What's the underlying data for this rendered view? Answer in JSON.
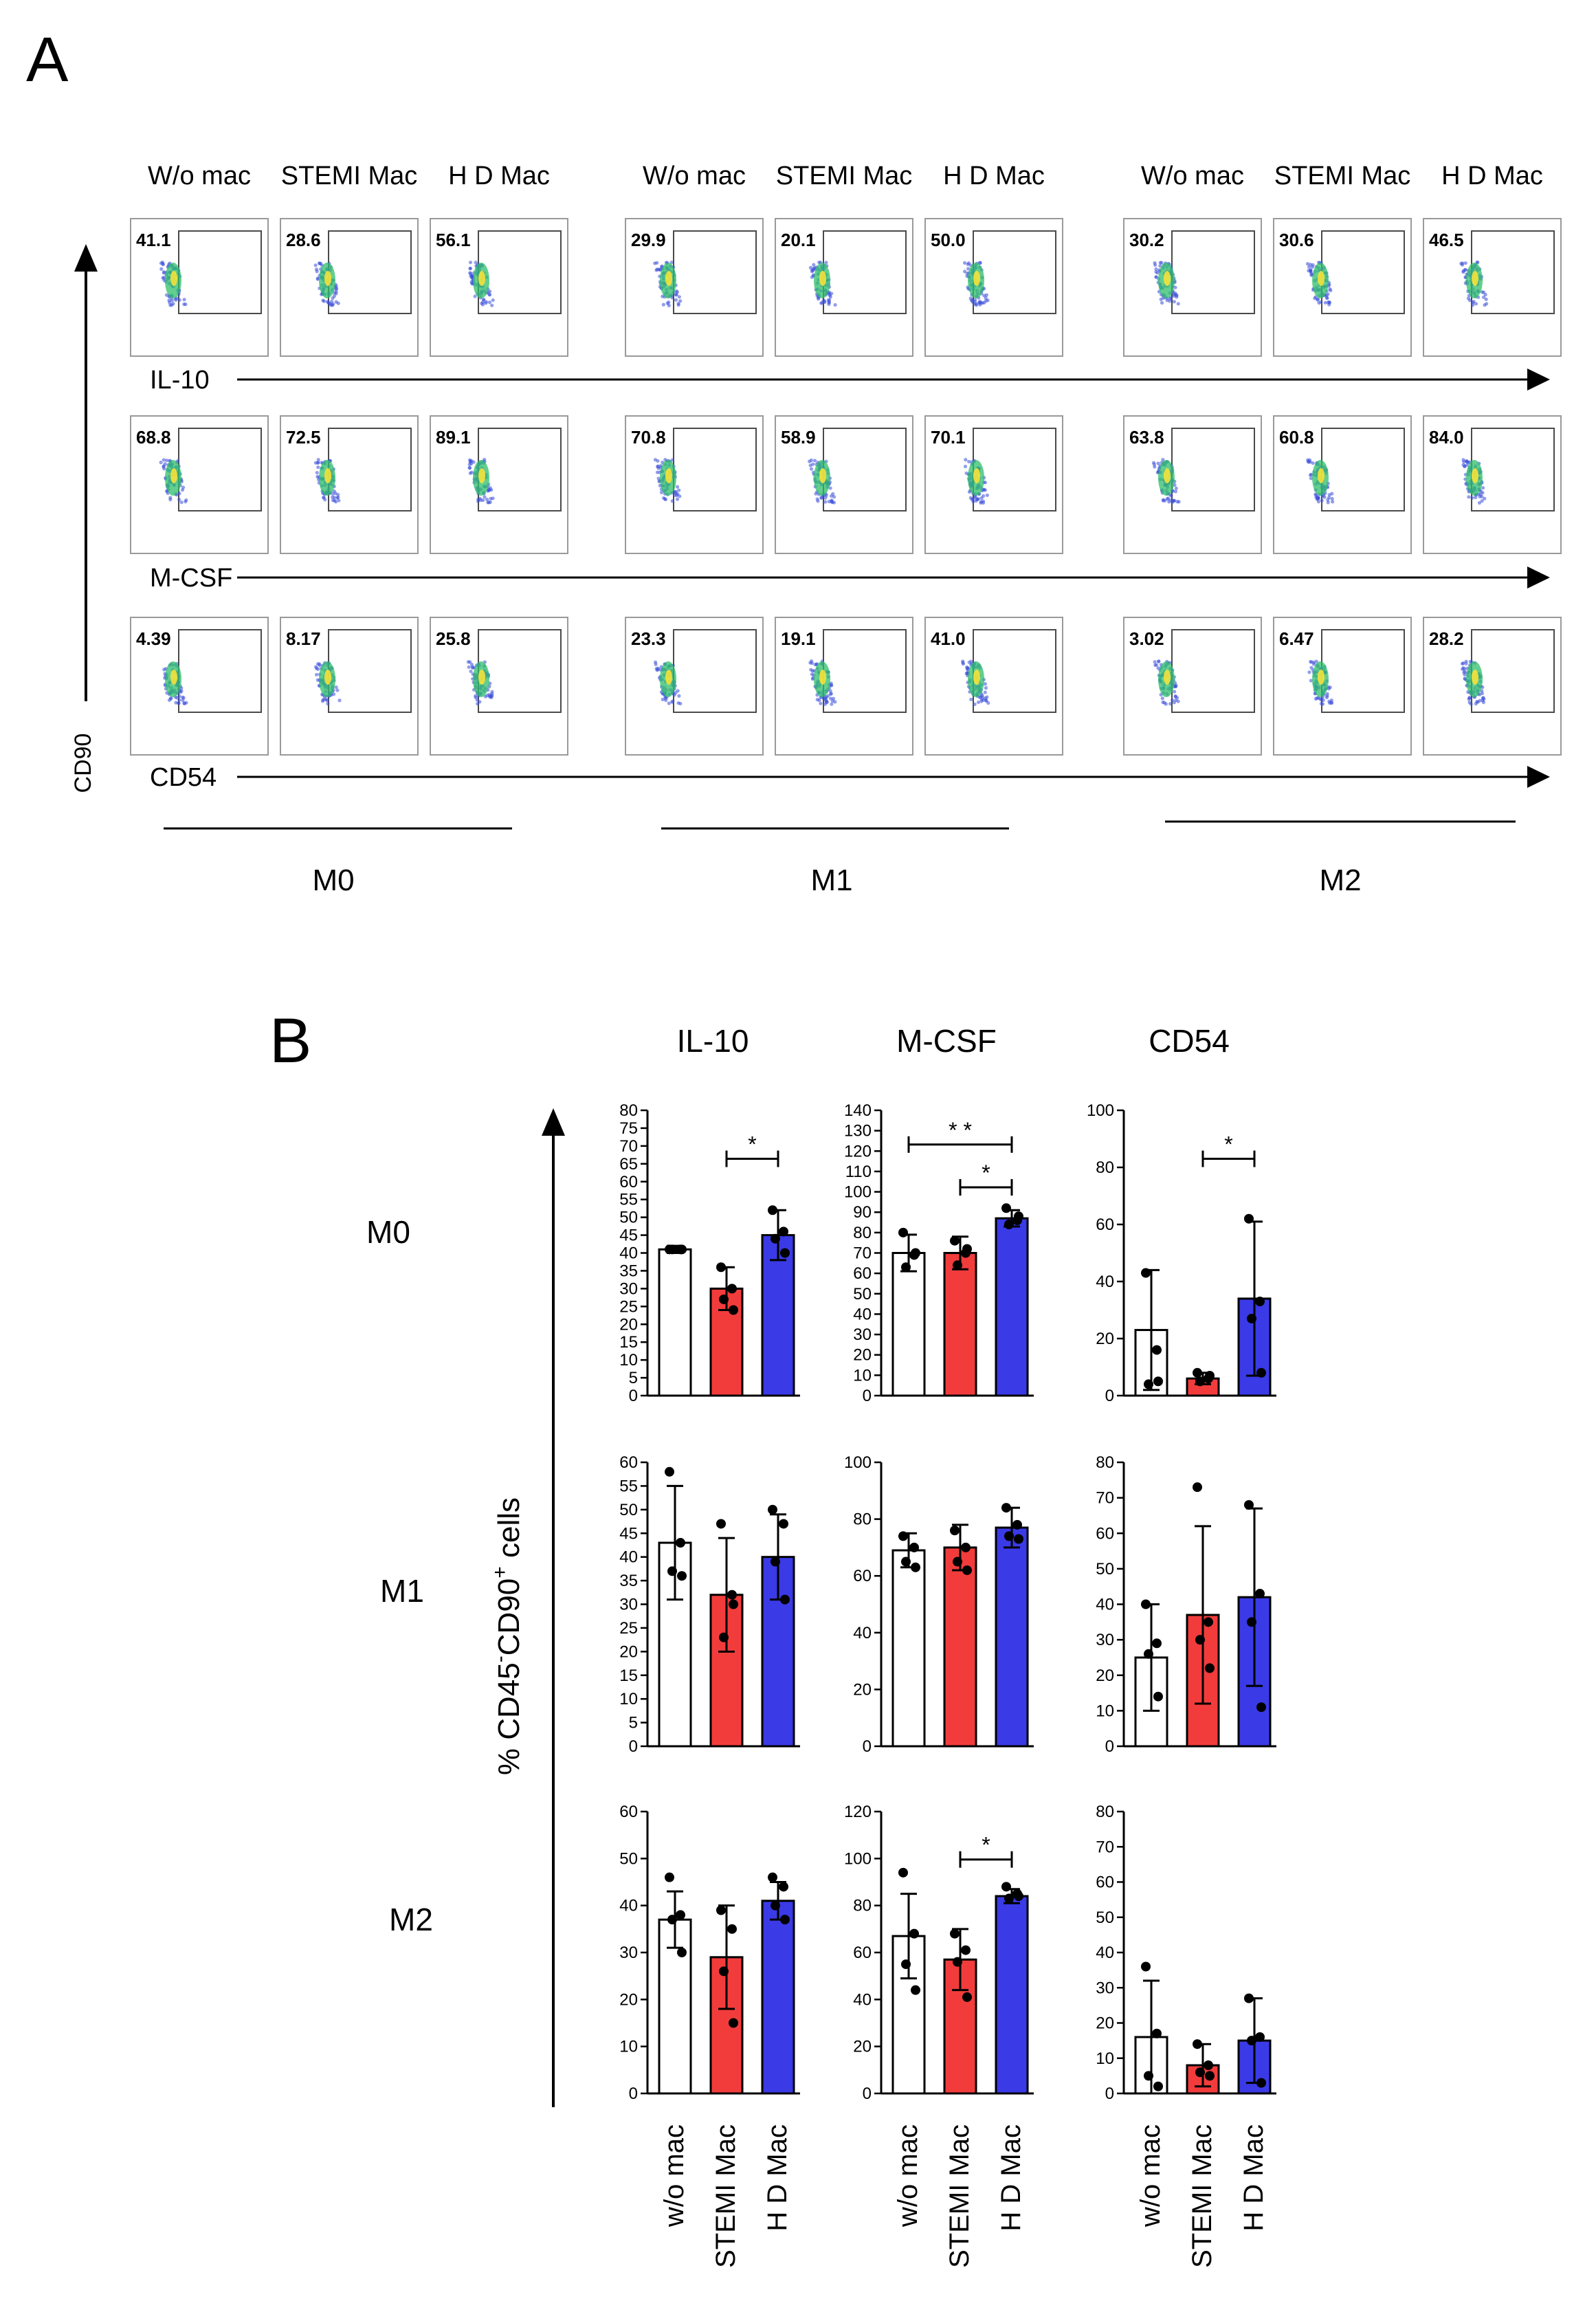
{
  "figure": {
    "panel_a_letter": "A",
    "panel_b_letter": "B"
  },
  "panel_a": {
    "y_axis_label": "CD90",
    "conditions": [
      "W/o mac",
      "STEMI Mac",
      "H D Mac"
    ],
    "groups": [
      "M0",
      "M1",
      "M2"
    ],
    "markers": [
      "IL-10",
      "M-CSF",
      "CD54"
    ],
    "gate_values": [
      [
        [
          "41.1",
          "28.6",
          "56.1"
        ],
        [
          "29.9",
          "20.1",
          "50.0"
        ],
        [
          "30.2",
          "30.6",
          "46.5"
        ]
      ],
      [
        [
          "68.8",
          "72.5",
          "89.1"
        ],
        [
          "70.8",
          "58.9",
          "70.1"
        ],
        [
          "63.8",
          "60.8",
          "84.0"
        ]
      ],
      [
        [
          "4.39",
          "8.17",
          "25.8"
        ],
        [
          "23.3",
          "19.1",
          "41.0"
        ],
        [
          "3.02",
          "6.47",
          "28.2"
        ]
      ]
    ]
  },
  "colors": {
    "wo_mac": "#ffffff",
    "stemi": "#f23c3c",
    "hd": "#3a3ae6",
    "axis": "#000000"
  },
  "chart_data": {
    "type": "bar",
    "panel": "B",
    "y_axis_label": "% CD45⁻CD90⁺ cells",
    "y_axis_label_parts": {
      "pre": "% CD45",
      "sup1": "-",
      "mid": "CD90",
      "sup2": "+",
      "post": " cells"
    },
    "columns": [
      "IL-10",
      "M-CSF",
      "CD54"
    ],
    "rows": [
      "M0",
      "M1",
      "M2"
    ],
    "categories": [
      "w/o mac",
      "STEMI Mac",
      "H D Mac"
    ],
    "charts": [
      {
        "row": "M0",
        "column": "IL-10",
        "ylim": [
          0,
          80
        ],
        "ticks": [
          0,
          5,
          10,
          15,
          20,
          25,
          30,
          35,
          40,
          45,
          50,
          55,
          60,
          65,
          70,
          75,
          80
        ],
        "means": [
          41,
          30,
          45
        ],
        "sd": [
          1,
          6,
          7
        ],
        "points": [
          [
            41,
            41,
            41,
            41
          ],
          [
            36,
            30,
            27,
            24
          ],
          [
            52,
            46,
            44,
            40
          ]
        ],
        "significance": [
          {
            "from": 1,
            "to": 2,
            "label": "*"
          }
        ]
      },
      {
        "row": "M0",
        "column": "M-CSF",
        "ylim": [
          0,
          140
        ],
        "ticks": [
          0,
          10,
          20,
          30,
          40,
          50,
          60,
          70,
          80,
          90,
          100,
          110,
          120,
          130,
          140
        ],
        "means": [
          70,
          70,
          87
        ],
        "sd": [
          9,
          8,
          4
        ],
        "points": [
          [
            80,
            69,
            63,
            70
          ],
          [
            76,
            70,
            64,
            72
          ],
          [
            92,
            86,
            84,
            88
          ]
        ],
        "significance": [
          {
            "from": 0,
            "to": 2,
            "label": "* *"
          },
          {
            "from": 1,
            "to": 2,
            "label": "*"
          }
        ]
      },
      {
        "row": "M0",
        "column": "CD54",
        "ylim": [
          0,
          100
        ],
        "ticks": [
          0,
          20,
          40,
          60,
          80,
          100
        ],
        "means": [
          23,
          6,
          34
        ],
        "sd": [
          21,
          2,
          27
        ],
        "points": [
          [
            43,
            16,
            4,
            5
          ],
          [
            8,
            6,
            5,
            7
          ],
          [
            62,
            33,
            27,
            8
          ]
        ],
        "significance": [
          {
            "from": 1,
            "to": 2,
            "label": "*"
          }
        ]
      },
      {
        "row": "M1",
        "column": "IL-10",
        "ylim": [
          0,
          60
        ],
        "ticks": [
          0,
          5,
          10,
          15,
          20,
          25,
          30,
          35,
          40,
          45,
          50,
          55,
          60
        ],
        "means": [
          43,
          32,
          40
        ],
        "sd": [
          12,
          12,
          9
        ],
        "points": [
          [
            58,
            43,
            37,
            36
          ],
          [
            47,
            32,
            23,
            30
          ],
          [
            50,
            47,
            39,
            31
          ]
        ],
        "significance": []
      },
      {
        "row": "M1",
        "column": "M-CSF",
        "ylim": [
          0,
          100
        ],
        "ticks": [
          0,
          20,
          40,
          60,
          80,
          100
        ],
        "means": [
          69,
          70,
          77
        ],
        "sd": [
          6,
          8,
          7
        ],
        "points": [
          [
            74,
            70,
            65,
            63
          ],
          [
            76,
            70,
            65,
            62
          ],
          [
            84,
            78,
            74,
            73
          ]
        ],
        "significance": []
      },
      {
        "row": "M1",
        "column": "CD54",
        "ylim": [
          0,
          80
        ],
        "ticks": [
          0,
          10,
          20,
          30,
          40,
          50,
          60,
          70,
          80
        ],
        "means": [
          25,
          37,
          42
        ],
        "sd": [
          15,
          25,
          25
        ],
        "points": [
          [
            40,
            29,
            26,
            14
          ],
          [
            73,
            35,
            30,
            22
          ],
          [
            68,
            43,
            35,
            11
          ]
        ],
        "significance": []
      },
      {
        "row": "M2",
        "column": "IL-10",
        "ylim": [
          0,
          60
        ],
        "ticks": [
          0,
          10,
          20,
          30,
          40,
          50,
          60
        ],
        "means": [
          37,
          29,
          41
        ],
        "sd": [
          6,
          11,
          4
        ],
        "points": [
          [
            46,
            38,
            37,
            30
          ],
          [
            39,
            35,
            26,
            15
          ],
          [
            46,
            44,
            40,
            37
          ]
        ],
        "significance": []
      },
      {
        "row": "M2",
        "column": "M-CSF",
        "ylim": [
          0,
          120
        ],
        "ticks": [
          0,
          20,
          40,
          60,
          80,
          100,
          120
        ],
        "means": [
          67,
          57,
          84
        ],
        "sd": [
          18,
          13,
          3
        ],
        "points": [
          [
            94,
            68,
            55,
            44
          ],
          [
            68,
            61,
            56,
            41
          ],
          [
            88,
            85,
            83,
            84
          ]
        ],
        "significance": [
          {
            "from": 1,
            "to": 2,
            "label": "*"
          }
        ]
      },
      {
        "row": "M2",
        "column": "CD54",
        "ylim": [
          0,
          80
        ],
        "ticks": [
          0,
          10,
          20,
          30,
          40,
          50,
          60,
          70,
          80
        ],
        "means": [
          16,
          8,
          15
        ],
        "sd": [
          16,
          6,
          12
        ],
        "points": [
          [
            36,
            17,
            5,
            2
          ],
          [
            14,
            8,
            6,
            5
          ],
          [
            27,
            16,
            15,
            3
          ]
        ],
        "significance": []
      }
    ]
  }
}
